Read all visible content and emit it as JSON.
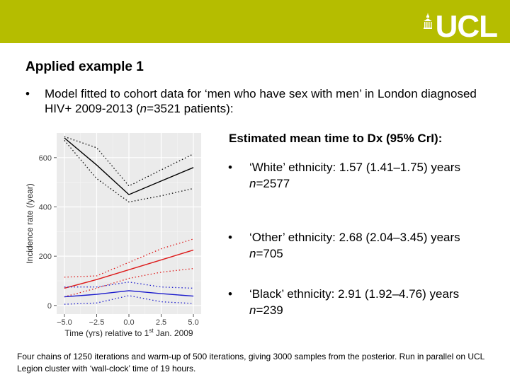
{
  "logo": {
    "text": "UCL",
    "bar_color": "#b5bd00"
  },
  "slide": {
    "heading": "Applied example 1",
    "bullet_symbol": "•",
    "bullet_text_a": "Model fitted to cohort data for ‘men who have sex with men’ in London diagnosed HIV+ 2009-2013 (",
    "bullet_text_n": "n",
    "bullet_text_b": "=3521 patients):"
  },
  "estimates": {
    "title": "Estimated mean time to Dx (95% CrI):",
    "items": [
      {
        "label": "‘White’ ethnicity: 1.57 (1.41–1.75) years",
        "n_label": "n",
        "n_value": "=2577"
      },
      {
        "label": "‘Other’ ethnicity: 2.68 (2.04–3.45) years",
        "n_label": "n",
        "n_value": "=705"
      },
      {
        "label": "‘Black’ ethnicity: 2.91 (1.92–4.76) years",
        "n_label": "n",
        "n_value": "=239"
      }
    ]
  },
  "footer": "Four chains of 1250 iterations and warm-up of 500 iterations, giving 3000 samples from the posterior. Run in parallel on UCL Legion cluster with ‘wall-clock’ time of 19 hours.",
  "chart_data": {
    "type": "line",
    "xlabel_main": "Time (yrs) relative to 1",
    "xlabel_sup": "st",
    "xlabel_tail": " Jan. 2009",
    "ylabel": "Incidence rate (/year)",
    "xlim": [
      -5.6,
      5.6
    ],
    "ylim": [
      -35,
      700
    ],
    "x_ticks": [
      -5.0,
      -2.5,
      0.0,
      2.5,
      5.0
    ],
    "x_tick_labels": [
      "−5.0",
      "−2.5",
      "0.0",
      "2.5",
      "5.0"
    ],
    "y_ticks": [
      0,
      200,
      400,
      600
    ],
    "y_tick_labels": [
      "0",
      "200",
      "400",
      "600"
    ],
    "grid": true,
    "series": [
      {
        "color": "#000000",
        "x": [
          -5.0,
          -2.5,
          0.0,
          2.5,
          5.0
        ],
        "mean": [
          680,
          570,
          450,
          505,
          560
        ],
        "lower": [
          670,
          515,
          420,
          445,
          475
        ],
        "upper": [
          685,
          640,
          485,
          550,
          615
        ]
      },
      {
        "color": "#dd1a1a",
        "x": [
          -5.0,
          -2.5,
          0.0,
          2.5,
          5.0
        ],
        "mean": [
          70,
          105,
          145,
          185,
          225
        ],
        "lower": [
          35,
          70,
          110,
          135,
          150
        ],
        "upper": [
          115,
          120,
          175,
          230,
          270
        ]
      },
      {
        "color": "#1a1acc",
        "x": [
          -5.0,
          -2.5,
          0.0,
          2.5,
          5.0
        ],
        "mean": [
          35,
          45,
          60,
          48,
          38
        ],
        "lower": [
          5,
          10,
          40,
          15,
          8
        ],
        "upper": [
          75,
          75,
          95,
          75,
          70
        ]
      }
    ]
  }
}
